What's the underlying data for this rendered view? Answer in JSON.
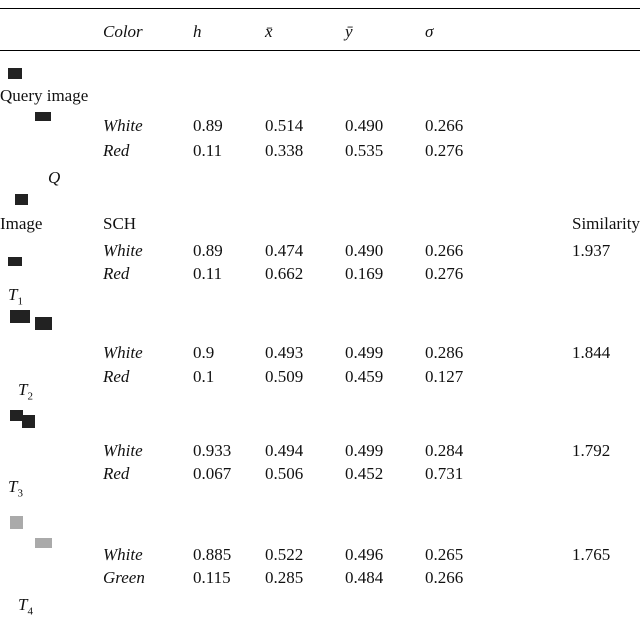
{
  "header": {
    "columns": [
      "Color",
      "h",
      "x̄",
      "ȳ",
      "σ"
    ]
  },
  "query": {
    "label": "Query image",
    "symbol": "Q",
    "rows": [
      [
        "White",
        "0.89",
        "0.514",
        "0.490",
        "0.266"
      ],
      [
        "Red",
        "0.11",
        "0.338",
        "0.535",
        "0.276"
      ]
    ]
  },
  "images": {
    "label": "Image",
    "method": "SCH",
    "score_label": "Similarity",
    "items": [
      {
        "symbol": "T",
        "index": "1",
        "similarity": "1.937",
        "rows": [
          [
            "White",
            "0.89",
            "0.474",
            "0.490",
            "0.266"
          ],
          [
            "Red",
            "0.11",
            "0.662",
            "0.169",
            "0.276"
          ]
        ]
      },
      {
        "symbol": "T",
        "index": "2",
        "similarity": "1.844",
        "rows": [
          [
            "White",
            "0.9",
            "0.493",
            "0.499",
            "0.286"
          ],
          [
            "Red",
            "0.1",
            "0.509",
            "0.459",
            "0.127"
          ]
        ]
      },
      {
        "symbol": "T",
        "index": "3",
        "similarity": "1.792",
        "rows": [
          [
            "White",
            "0.933",
            "0.494",
            "0.499",
            "0.284"
          ],
          [
            "Red",
            "0.067",
            "0.506",
            "0.452",
            "0.731"
          ]
        ]
      },
      {
        "symbol": "T",
        "index": "4",
        "similarity": "1.765",
        "rows": [
          [
            "White",
            "0.885",
            "0.522",
            "0.496",
            "0.265"
          ],
          [
            "Green",
            "0.115",
            "0.285",
            "0.484",
            "0.266"
          ]
        ]
      }
    ]
  }
}
